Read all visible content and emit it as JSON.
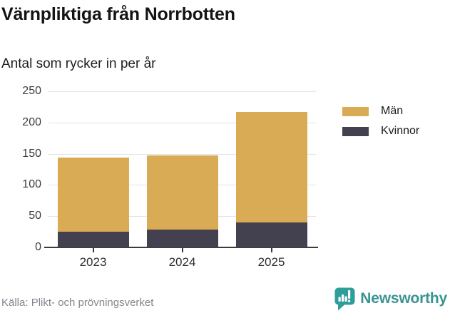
{
  "header": {
    "title": "Värnpliktiga från Norrbotten",
    "subtitle": "Antal som rycker in per år"
  },
  "chart_data": {
    "type": "bar",
    "stacked": true,
    "title": "Värnpliktiga från Norrbotten",
    "subtitle": "Antal som rycker in per år",
    "categories": [
      "2023",
      "2024",
      "2025"
    ],
    "series": [
      {
        "name": "Män",
        "color": "#d9ab55",
        "values": [
          119,
          119,
          177
        ]
      },
      {
        "name": "Kvinnor",
        "color": "#434150",
        "values": [
          25,
          28,
          40
        ]
      }
    ],
    "stack_order_bottom_to_top": [
      "Kvinnor",
      "Män"
    ],
    "stacked_totals": [
      144,
      147,
      217
    ],
    "xlabel": "",
    "ylabel": "",
    "ylim": [
      0,
      250
    ],
    "yticks": [
      0,
      50,
      100,
      150,
      200,
      250
    ],
    "grid": true,
    "legend_position": "right",
    "colors": {
      "gridline": "#e3e3e3",
      "axis": "#3b3b3b",
      "background": "#ffffff"
    }
  },
  "footer": {
    "source": "Källa: Plikt- och prövningsverket",
    "brand": "Newsworthy",
    "brand_color": "#399492",
    "brand_icon_color": "#2e9e9b"
  }
}
